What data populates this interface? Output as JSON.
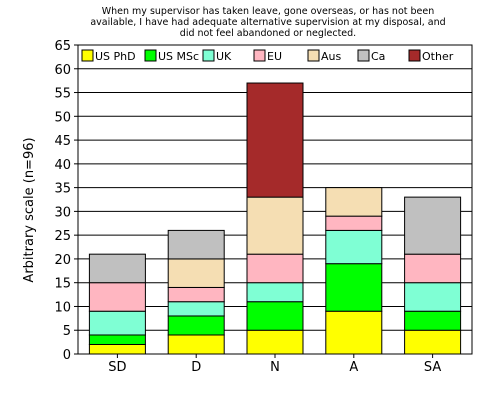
{
  "chart_data": {
    "type": "bar",
    "stacked": true,
    "title_lines": [
      "When my supervisor has taken leave, gone overseas, or has not been",
      "available, I have had adequate alternative supervision at my disposal, and",
      "did not feel abandoned or neglected."
    ],
    "ylabel": "Arbitrary scale (n=96)",
    "xlabel": "",
    "categories": [
      "SD",
      "D",
      "N",
      "A",
      "SA"
    ],
    "ylim": [
      0,
      65
    ],
    "yticks": [
      0,
      5,
      10,
      15,
      20,
      25,
      30,
      35,
      40,
      45,
      50,
      55,
      60,
      65
    ],
    "grid": true,
    "legend_position": "top",
    "series": [
      {
        "name": "US PhD",
        "color": "#ffff00",
        "values": [
          2,
          4,
          5,
          9,
          5
        ]
      },
      {
        "name": "US MSc",
        "color": "#00ff00",
        "values": [
          2,
          4,
          6,
          10,
          4
        ]
      },
      {
        "name": "UK",
        "color": "#7fffd4",
        "values": [
          5,
          3,
          4,
          7,
          6
        ]
      },
      {
        "name": "EU",
        "color": "#ffb6c1",
        "values": [
          6,
          3,
          6,
          3,
          6
        ]
      },
      {
        "name": "Aus",
        "color": "#f5deb3",
        "values": [
          0,
          6,
          12,
          6,
          0
        ]
      },
      {
        "name": "Ca",
        "color": "#c0c0c0",
        "values": [
          6,
          6,
          0,
          0,
          12
        ]
      },
      {
        "name": "Other",
        "color": "#a52a2a",
        "values": [
          0,
          0,
          24,
          0,
          0
        ]
      }
    ]
  }
}
